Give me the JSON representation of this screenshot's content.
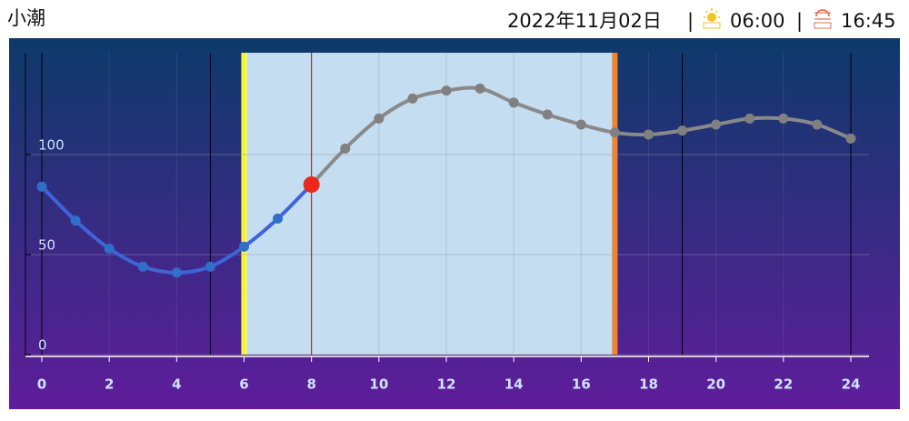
{
  "chart_data": {
    "type": "line",
    "title": "小潮",
    "date": "2022年11月02日",
    "separator": "|",
    "sunrise": "06:00",
    "sunset": "16:45",
    "x": [
      0,
      1,
      2,
      3,
      4,
      5,
      6,
      7,
      8,
      9,
      10,
      11,
      12,
      13,
      14,
      15,
      16,
      17,
      18,
      19,
      20,
      21,
      22,
      23,
      24
    ],
    "values": [
      84,
      67,
      53,
      44,
      41,
      44,
      54,
      68,
      85,
      103,
      118,
      128,
      132,
      133,
      126,
      120,
      115,
      111,
      110,
      112,
      115,
      118,
      118,
      115,
      108
    ],
    "current": 8,
    "past_color": "#3f63d8",
    "future_color": "#8a8a8a",
    "current_color": "#e8291c",
    "daylight": [
      6,
      17
    ],
    "daylight_color": "#c4ddf0",
    "sunrise_color": "#ffff33",
    "sunset_color": "#f0842a",
    "vlines": [
      0,
      5,
      19,
      24
    ],
    "xlim": [
      0,
      24
    ],
    "ylim": [
      0,
      150
    ],
    "xticks": [
      0,
      2,
      4,
      6,
      8,
      10,
      12,
      14,
      16,
      18,
      20,
      22,
      24
    ],
    "yticks": [
      0,
      50,
      100
    ],
    "grid": true
  }
}
